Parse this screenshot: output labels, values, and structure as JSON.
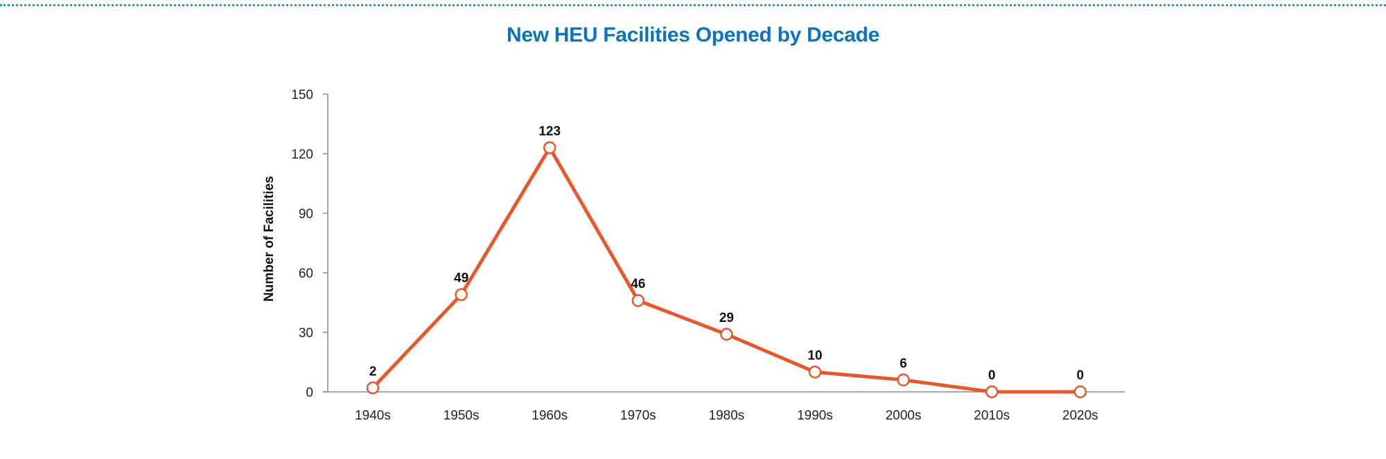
{
  "chart_data": {
    "type": "line",
    "title": "New HEU Facilities Opened by Decade",
    "xlabel": "",
    "ylabel": "Number of Facilities",
    "categories": [
      "1940s",
      "1950s",
      "1960s",
      "1970s",
      "1980s",
      "1990s",
      "2000s",
      "2010s",
      "2020s"
    ],
    "values": [
      2,
      49,
      123,
      46,
      29,
      10,
      6,
      0,
      0
    ],
    "ylim": [
      0,
      150
    ],
    "yticks": [
      0,
      30,
      60,
      90,
      120,
      150
    ],
    "grid": false,
    "legend": "none",
    "data_labels": true
  },
  "colors": {
    "line": "#e8572a",
    "marker_fill": "#ffffff",
    "title": "#0a73c2",
    "axis": "#888888",
    "top_rule": "#2b8fd0"
  }
}
